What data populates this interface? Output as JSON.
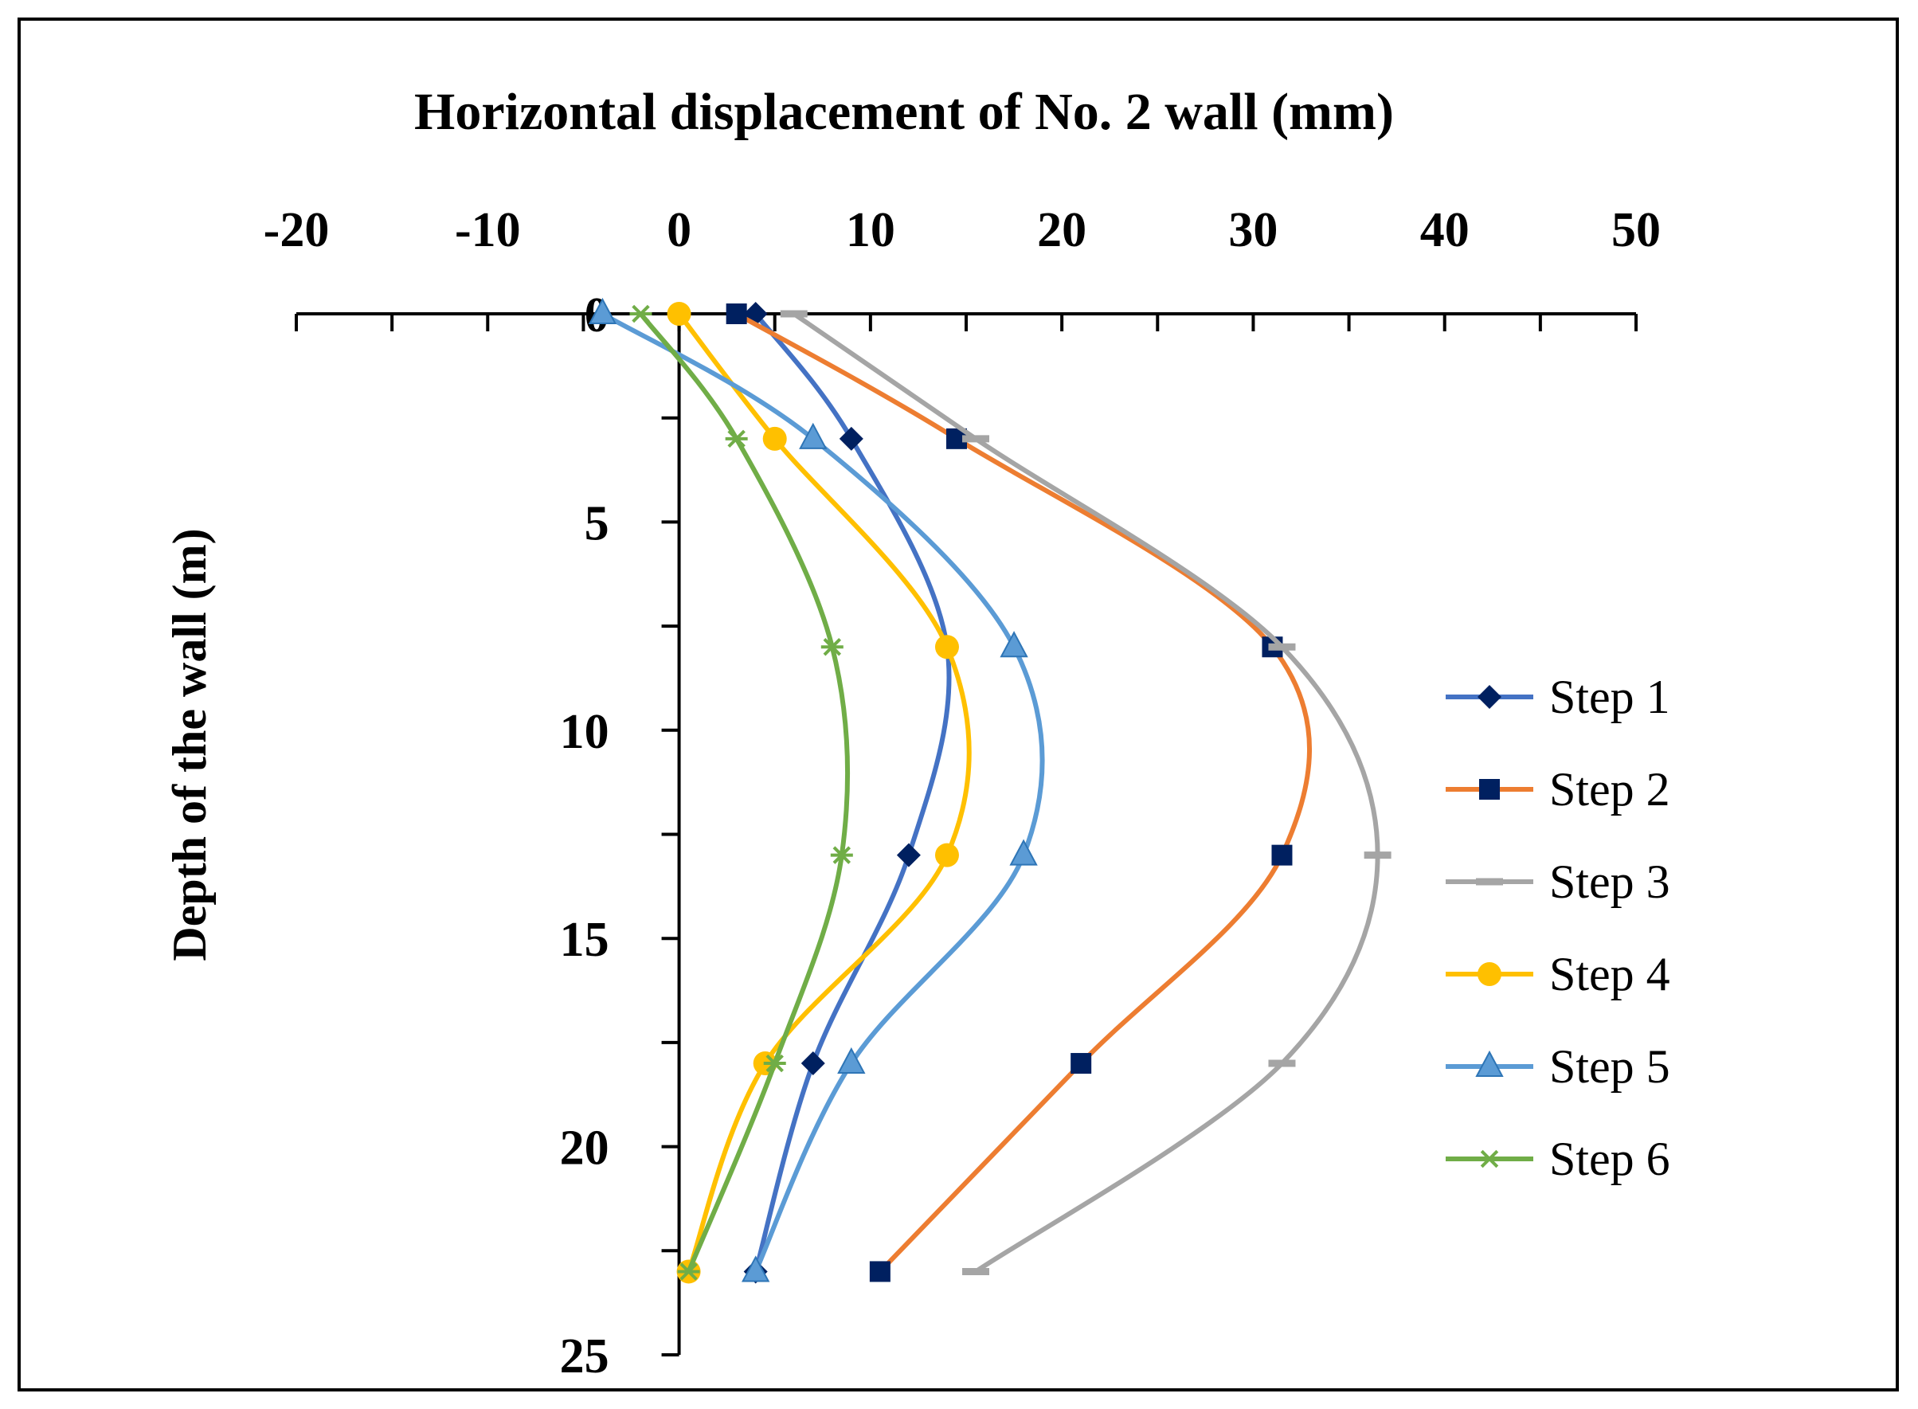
{
  "chart_data": {
    "type": "line",
    "title": "Horizontal displacement of No. 2 wall (mm)",
    "xlabel": "Horizontal displacement of No. 2 wall (mm)",
    "ylabel": "Depth of the wall (m)",
    "xlim": [
      -20,
      50
    ],
    "ylim": [
      0,
      25
    ],
    "y_inverted": true,
    "x_axis_position": "top",
    "x_ticks": [
      "-20",
      "-10",
      "0",
      "10",
      "20",
      "30",
      "40",
      "50"
    ],
    "y_ticks": [
      "0",
      "5",
      "10",
      "15",
      "20",
      "25"
    ],
    "depths": [
      0,
      3,
      8,
      13,
      18,
      23
    ],
    "legend_position": "right",
    "series": [
      {
        "name": "Step 1",
        "color": "#4472C4",
        "marker": "diamond",
        "marker_color": "#002060",
        "x": [
          4,
          9,
          14,
          12,
          7,
          4
        ]
      },
      {
        "name": "Step 2",
        "color": "#ED7D31",
        "marker": "square",
        "marker_color": "#002060",
        "x": [
          3,
          14.5,
          31,
          31.5,
          21,
          10.5
        ]
      },
      {
        "name": "Step 3",
        "color": "#A5A5A5",
        "marker": "dash",
        "marker_color": "#A5A5A5",
        "x": [
          6,
          15.5,
          31.5,
          36.5,
          31.5,
          15.5
        ]
      },
      {
        "name": "Step 4",
        "color": "#FFC000",
        "marker": "circle",
        "marker_color": "#FFC000",
        "x": [
          0,
          5,
          14,
          14,
          4.5,
          0.5
        ]
      },
      {
        "name": "Step 5",
        "color": "#5B9BD5",
        "marker": "triangle",
        "marker_color": "#5B9BD5",
        "x": [
          -4,
          7,
          17.5,
          18,
          9,
          4
        ]
      },
      {
        "name": "Step 6",
        "color": "#70AD47",
        "marker": "star",
        "marker_color": "#70AD47",
        "x": [
          -2,
          3,
          8,
          8.5,
          5,
          0.5
        ]
      }
    ]
  }
}
